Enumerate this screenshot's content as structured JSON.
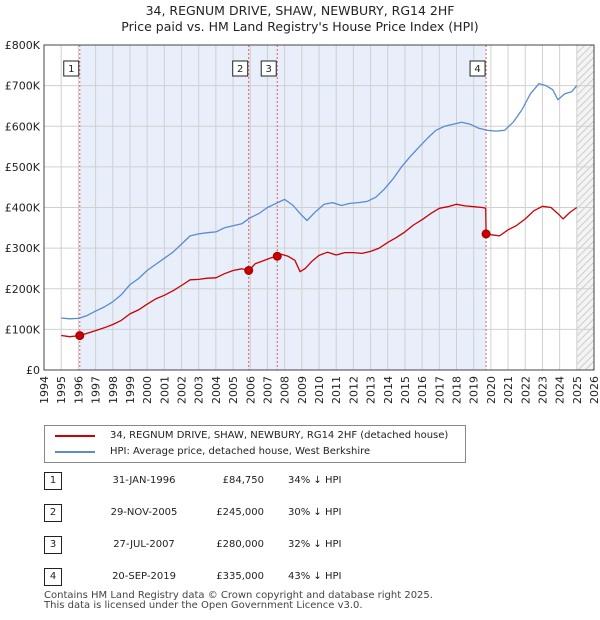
{
  "chart_data": {
    "type": "line",
    "title": "34, REGNUM DRIVE, SHAW, NEWBURY, RG14 2HF",
    "subtitle": "Price paid vs. HM Land Registry's House Price Index (HPI)",
    "xlim": [
      1994,
      2026
    ],
    "ylim": [
      0,
      800000
    ],
    "x_ticks": [
      "1994",
      "1995",
      "1996",
      "1997",
      "1998",
      "1999",
      "2000",
      "2001",
      "2002",
      "2003",
      "2004",
      "2005",
      "2006",
      "2007",
      "2008",
      "2009",
      "2010",
      "2011",
      "2012",
      "2013",
      "2014",
      "2015",
      "2016",
      "2017",
      "2018",
      "2019",
      "2020",
      "2021",
      "2022",
      "2023",
      "2024",
      "2025",
      "2026"
    ],
    "y_ticks": [
      {
        "value": 0,
        "label": "£0"
      },
      {
        "value": 100000,
        "label": "£100K"
      },
      {
        "value": 200000,
        "label": "£200K"
      },
      {
        "value": 300000,
        "label": "£300K"
      },
      {
        "value": 400000,
        "label": "£400K"
      },
      {
        "value": 500000,
        "label": "£500K"
      },
      {
        "value": 600000,
        "label": "£600K"
      },
      {
        "value": 700000,
        "label": "£700K"
      },
      {
        "value": 800000,
        "label": "£800K"
      }
    ],
    "ownership_shading": {
      "start": 1996.08,
      "end": 2019.72,
      "color": "#e8eefa"
    },
    "data_end_hatch_start": 2025.0,
    "series": [
      {
        "name": "34, REGNUM DRIVE, SHAW, NEWBURY, RG14 2HF (detached house)",
        "color": "#cc0000",
        "x": [
          1995.0,
          1995.5,
          1996.08,
          1996.5,
          1997.0,
          1997.5,
          1998.0,
          1998.5,
          1999.0,
          1999.5,
          2000.0,
          2000.5,
          2001.0,
          2001.5,
          2002.0,
          2002.5,
          2003.0,
          2003.5,
          2004.0,
          2004.5,
          2005.0,
          2005.5,
          2005.91,
          2006.3,
          2006.7,
          2007.2,
          2007.57,
          2007.8,
          2008.2,
          2008.6,
          2008.9,
          2009.2,
          2009.6,
          2010.0,
          2010.5,
          2011.0,
          2011.5,
          2012.0,
          2012.5,
          2013.0,
          2013.5,
          2014.0,
          2014.5,
          2015.0,
          2015.5,
          2016.0,
          2016.5,
          2017.0,
          2017.5,
          2018.0,
          2018.5,
          2019.0,
          2019.5,
          2019.7,
          2019.72,
          2020.0,
          2020.5,
          2021.0,
          2021.5,
          2022.0,
          2022.5,
          2023.0,
          2023.5,
          2023.9,
          2024.2,
          2024.6,
          2025.0
        ],
        "values": [
          85000,
          82000,
          84750,
          90000,
          97000,
          104000,
          112000,
          122000,
          138000,
          148000,
          162000,
          175000,
          184000,
          195000,
          208000,
          222000,
          223000,
          226000,
          227000,
          237000,
          245000,
          249000,
          245000,
          262000,
          268000,
          276000,
          280000,
          285000,
          280000,
          270000,
          242000,
          250000,
          268000,
          282000,
          290000,
          283000,
          289000,
          289000,
          287000,
          292000,
          300000,
          314000,
          326000,
          340000,
          357000,
          370000,
          385000,
          398000,
          402000,
          408000,
          404000,
          402000,
          400000,
          398000,
          335000,
          333000,
          330000,
          345000,
          356000,
          372000,
          392000,
          403000,
          400000,
          385000,
          372000,
          388000,
          400000
        ]
      },
      {
        "name": "HPI: Average price, detached house, West Berkshire",
        "color": "#5a8bd0",
        "x": [
          1995.0,
          1995.5,
          1996.0,
          1996.5,
          1997.0,
          1997.5,
          1998.0,
          1998.5,
          1999.0,
          1999.5,
          2000.0,
          2000.5,
          2001.0,
          2001.5,
          2002.0,
          2002.5,
          2003.0,
          2003.5,
          2004.0,
          2004.5,
          2005.0,
          2005.5,
          2006.0,
          2006.5,
          2007.0,
          2007.5,
          2008.0,
          2008.5,
          2008.9,
          2009.3,
          2009.8,
          2010.3,
          2010.8,
          2011.3,
          2011.8,
          2012.3,
          2012.8,
          2013.3,
          2013.8,
          2014.3,
          2014.8,
          2015.3,
          2015.8,
          2016.3,
          2016.8,
          2017.3,
          2017.8,
          2018.3,
          2018.8,
          2019.3,
          2019.8,
          2020.3,
          2020.8,
          2021.3,
          2021.8,
          2022.3,
          2022.8,
          2023.2,
          2023.6,
          2023.9,
          2024.3,
          2024.7,
          2025.0
        ],
        "values": [
          128000,
          126000,
          127000,
          134000,
          145000,
          155000,
          168000,
          185000,
          210000,
          225000,
          245000,
          260000,
          275000,
          290000,
          310000,
          330000,
          335000,
          338000,
          340000,
          350000,
          355000,
          360000,
          375000,
          385000,
          400000,
          410000,
          420000,
          405000,
          385000,
          368000,
          390000,
          408000,
          412000,
          405000,
          410000,
          412000,
          415000,
          425000,
          445000,
          470000,
          500000,
          525000,
          548000,
          570000,
          590000,
          600000,
          605000,
          610000,
          605000,
          595000,
          590000,
          588000,
          590000,
          610000,
          640000,
          680000,
          705000,
          700000,
          690000,
          665000,
          680000,
          685000,
          700000
        ]
      }
    ],
    "sales": [
      {
        "id": "1",
        "x": 1996.08,
        "value": 84750
      },
      {
        "id": "2",
        "x": 2005.91,
        "value": 245000
      },
      {
        "id": "3",
        "x": 2007.57,
        "value": 280000
      },
      {
        "id": "4",
        "x": 2019.72,
        "value": 335000
      }
    ]
  },
  "legend": {
    "property_label": "34, REGNUM DRIVE, SHAW, NEWBURY, RG14 2HF (detached house)",
    "hpi_label": "HPI: Average price, detached house, West Berkshire"
  },
  "sales_table": [
    {
      "id": "1",
      "date": "31-JAN-1996",
      "price": "£84,750",
      "hpi": "34% ↓ HPI"
    },
    {
      "id": "2",
      "date": "29-NOV-2005",
      "price": "£245,000",
      "hpi": "30% ↓ HPI"
    },
    {
      "id": "3",
      "date": "27-JUL-2007",
      "price": "£280,000",
      "hpi": "32% ↓ HPI"
    },
    {
      "id": "4",
      "date": "20-SEP-2019",
      "price": "£335,000",
      "hpi": "43% ↓ HPI"
    }
  ],
  "footer": {
    "line1": "Contains HM Land Registry data © Crown copyright and database right 2025.",
    "line2": "This data is licensed under the Open Government Licence v3.0."
  },
  "colors": {
    "property": "#cc0000",
    "hpi": "#5a8bd0",
    "shade": "#e8eefa",
    "grid": "#d0d0d0",
    "sale_marker_line": "#e06060"
  }
}
